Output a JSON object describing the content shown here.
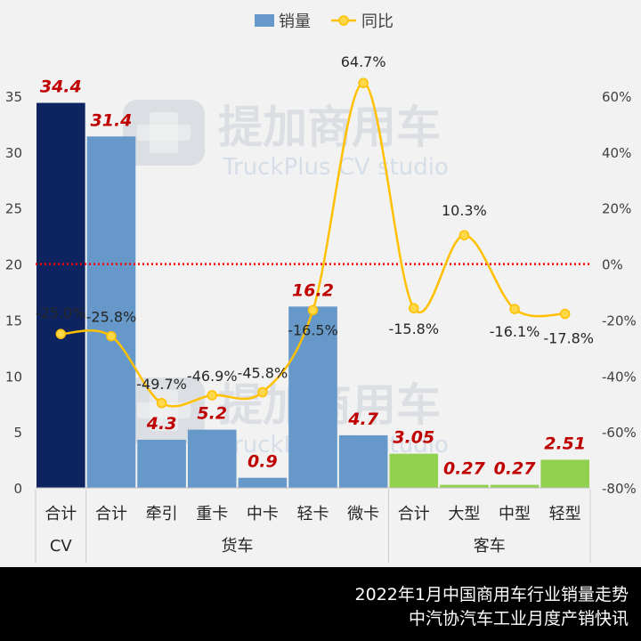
{
  "chart_data": {
    "type": "bar+line",
    "legend": [
      {
        "name": "销量",
        "type": "bar",
        "color": "#6699c9"
      },
      {
        "name": "同比",
        "type": "line",
        "color": "#ffc000"
      }
    ],
    "legend_position": "top",
    "watermark": {
      "name": "提加商用车",
      "sub": "TruckPlus CV studio"
    },
    "left_axis": {
      "min": 0,
      "max": 35,
      "ticks": [
        0,
        5,
        10,
        15,
        20,
        25,
        30,
        35
      ]
    },
    "right_axis": {
      "min": -80,
      "max": 60,
      "ticks": [
        -80,
        -60,
        -40,
        -20,
        0,
        20,
        40,
        60
      ],
      "tick_labels": [
        "-80%",
        "-60%",
        "-40%",
        "-20%",
        "0%",
        "20%",
        "40%",
        "60%"
      ]
    },
    "zero_line": "dotted red at 0%",
    "categories": [
      "合计",
      "合计",
      "牵引",
      "重卡",
      "中卡",
      "轻卡",
      "微卡",
      "合计",
      "大型",
      "中型",
      "轻型"
    ],
    "groups": [
      {
        "label": "CV",
        "start": 0,
        "end": 0
      },
      {
        "label": "货车",
        "start": 1,
        "end": 6
      },
      {
        "label": "客车",
        "start": 7,
        "end": 10
      }
    ],
    "sales": [
      34.4,
      31.4,
      4.3,
      5.2,
      0.9,
      16.2,
      4.7,
      3.05,
      0.27,
      0.27,
      2.51
    ],
    "sales_labels": [
      "34.4",
      "31.4",
      "4.3",
      "5.2",
      "0.9",
      "16.2",
      "4.7",
      "3.05",
      "0.27",
      "0.27",
      "2.51"
    ],
    "bar_colors": [
      "#0d2461",
      "#6699c9",
      "#6699c9",
      "#6699c9",
      "#6699c9",
      "#6699c9",
      "#6699c9",
      "#92d050",
      "#92d050",
      "#92d050",
      "#92d050"
    ],
    "yoy": [
      -25.0,
      -25.8,
      -49.7,
      -46.9,
      -45.8,
      -16.5,
      64.7,
      -15.8,
      10.3,
      -16.1,
      -17.8
    ],
    "yoy_labels": [
      "-25.0%",
      "-25.8%",
      "-49.7%",
      "-46.9%",
      "-45.8%",
      "-16.5%",
      "64.7%",
      "-15.8%",
      "10.3%",
      "-16.1%",
      "-17.8%"
    ]
  },
  "footer": {
    "line1": "2022年1月中国商用车行业销量走势",
    "line2": "中汽协汽车工业月度产销快讯"
  }
}
